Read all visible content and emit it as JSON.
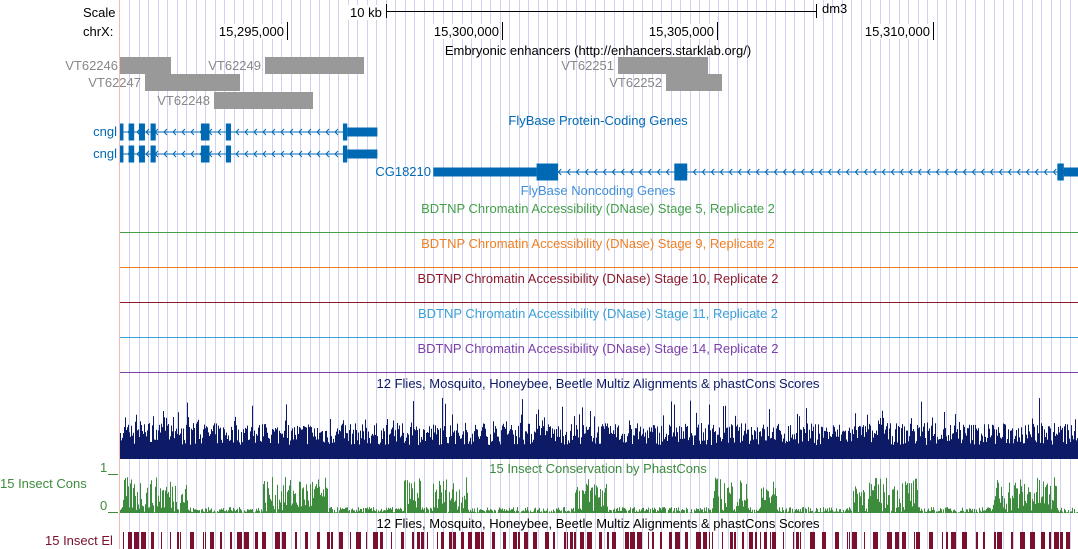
{
  "scale": {
    "label": "Scale",
    "bar_label": "10 kb",
    "assembly": "dm3"
  },
  "ruler": {
    "chrom_label": "chrX:",
    "ticks": [
      {
        "pos": 15295000,
        "label": "15,295,000"
      },
      {
        "pos": 15300000,
        "label": "15,300,000"
      },
      {
        "pos": 15305000,
        "label": "15,305,000"
      },
      {
        "pos": 15310000,
        "label": "15,310,000"
      }
    ]
  },
  "view": {
    "start": 15291120,
    "end": 15313380
  },
  "enhancers": {
    "title": "Embryonic enhancers (http://enhancers.starklab.org/)",
    "color": "#999999",
    "items": [
      {
        "name": "VT62246",
        "row": 0,
        "start": 15291120,
        "end": 15292300
      },
      {
        "name": "VT62249",
        "row": 0,
        "start": 15294500,
        "end": 15296800
      },
      {
        "name": "VT62251",
        "row": 0,
        "start": 15302700,
        "end": 15304800
      },
      {
        "name": "VT62247",
        "row": 1,
        "start": 15291700,
        "end": 15293900
      },
      {
        "name": "VT62252",
        "row": 1,
        "start": 15303800,
        "end": 15305100
      },
      {
        "name": "VT62248",
        "row": 2,
        "start": 15293300,
        "end": 15295600
      }
    ]
  },
  "protein_genes": {
    "title": "FlyBase Protein-Coding Genes",
    "color": "#0069b4",
    "items": [
      {
        "name": "cngl",
        "row": 0,
        "start": 15291120,
        "end": 15297100,
        "exons": [
          [
            15291120,
            15291200
          ],
          [
            15291320,
            15291450
          ],
          [
            15291560,
            15291700
          ],
          [
            15291830,
            15291950
          ],
          [
            15293000,
            15293200
          ],
          [
            15293580,
            15293700
          ],
          [
            15296300,
            15296400
          ],
          [
            15296400,
            15297100
          ]
        ]
      },
      {
        "name": "cngl",
        "row": 1,
        "start": 15291120,
        "end": 15297100,
        "exons": [
          [
            15291120,
            15291200
          ],
          [
            15291320,
            15291450
          ],
          [
            15291560,
            15291700
          ],
          [
            15291830,
            15291950
          ],
          [
            15293000,
            15293200
          ],
          [
            15293580,
            15293700
          ],
          [
            15296300,
            15296400
          ],
          [
            15296400,
            15297100
          ]
        ]
      },
      {
        "name": "CG18210",
        "row": 2,
        "start": 15298400,
        "end": 15313380,
        "exons": [
          [
            15298400,
            15300800
          ],
          [
            15300800,
            15301300
          ],
          [
            15304000,
            15304300
          ],
          [
            15312900,
            15313050
          ],
          [
            15313050,
            15313380
          ]
        ]
      }
    ]
  },
  "noncoding": {
    "title": "FlyBase Noncoding Genes",
    "color": "#3f8fd8"
  },
  "dnase": [
    {
      "title": "BDTNP Chromatin Accessibility (DNase) Stage 5, Replicate 2",
      "color": "#43a047"
    },
    {
      "title": "BDTNP Chromatin Accessibility (DNase) Stage 9, Replicate 2",
      "color": "#f07f22"
    },
    {
      "title": "BDTNP Chromatin Accessibility (DNase) Stage 10, Replicate 2",
      "color": "#8b1a2b"
    },
    {
      "title": "BDTNP Chromatin Accessibility (DNase) Stage 11, Replicate 2",
      "color": "#3aa0d8"
    },
    {
      "title": "BDTNP Chromatin Accessibility (DNase) Stage 14, Replicate 2",
      "color": "#7b3fa8"
    }
  ],
  "multiz": {
    "title": "12 Flies, Mosquito, Honeybee, Beetle Multiz Alignments & phastCons Scores",
    "color": "#0d1a66"
  },
  "cons": {
    "title": "15 Insect Conservation by PhastCons",
    "side_label": "15 Insect Cons",
    "ymax": "1",
    "ymin": "0",
    "color": "#3d8b3d"
  },
  "elements": {
    "title": "12 Flies, Mosquito, Honeybee, Beetle Multiz Alignments & phastCons Scores",
    "side_label": "15 Insect El",
    "color": "#7a0f2e"
  }
}
